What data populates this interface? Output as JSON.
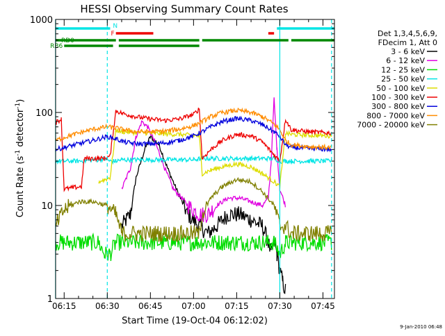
{
  "chart_data": {
    "type": "line",
    "title": "HESSI Observing Summary Count Rates",
    "xlabel": "Start Time (19-Oct-04 06:12:02)",
    "ylabel_main": "Count Rate (s",
    "ylabel_sup1": "-1",
    "ylabel_mid": " detector",
    "ylabel_sup2": "-1",
    "ylabel_end": ")",
    "footer": "9-Jan-2010 06:48",
    "x_scale": "time",
    "y_scale": "log",
    "xlim": [
      "06:12:02",
      "07:49:00"
    ],
    "ylim": [
      1,
      1000
    ],
    "x_ticks": [
      "06:15",
      "06:30",
      "06:45",
      "07:00",
      "07:15",
      "07:30",
      "07:45"
    ],
    "y_ticks": [
      {
        "value": 1,
        "label": "1"
      },
      {
        "value": 10,
        "label": "10"
      },
      {
        "value": 100,
        "label": "100"
      },
      {
        "value": 1000,
        "label": "1000"
      }
    ],
    "legend_position": "right",
    "legend_header": [
      "Det 1,3,4,5,6,9,",
      "FDecim 1, Att 0"
    ],
    "series": [
      {
        "name": "3 - 6 keV",
        "color": "#000000",
        "t": [
          "06:12",
          "06:15",
          "06:22",
          "06:27",
          "06:31",
          "06:33",
          "06:35",
          "06:38",
          "06:40",
          "06:43",
          "06:45",
          "06:48",
          "06:51",
          "06:54",
          "06:58",
          "07:02",
          "07:05",
          "07:08",
          "07:12",
          "07:16",
          "07:20",
          "07:24",
          "07:26",
          "07:27",
          "07:28",
          "07:29",
          "07:30",
          "07:31",
          "07:32",
          "07:34"
        ],
        "v": [
          null,
          null,
          null,
          null,
          null,
          null,
          6,
          8,
          20,
          40,
          55,
          45,
          25,
          15,
          8,
          6,
          5,
          6,
          8,
          8,
          7,
          6,
          4,
          3,
          4,
          3,
          2,
          1.5,
          1.2,
          null
        ]
      },
      {
        "name": "6 - 12 keV",
        "color": "#e000e0",
        "t": [
          "06:12",
          "06:14",
          "06:22",
          "06:27",
          "06:31",
          "06:33",
          "06:35",
          "06:38",
          "06:40",
          "06:42",
          "06:44",
          "06:47",
          "06:50",
          "06:53",
          "06:56",
          "06:58",
          "07:02",
          "07:05",
          "07:08",
          "07:12",
          "07:16",
          "07:20",
          "07:24",
          "07:26",
          "07:27",
          "07:28",
          "07:29",
          "07:30",
          "07:32",
          "07:34"
        ],
        "v": [
          null,
          null,
          null,
          null,
          null,
          null,
          15,
          25,
          55,
          80,
          70,
          45,
          25,
          15,
          12,
          10,
          8,
          8,
          10,
          12,
          12,
          11,
          10,
          12,
          30,
          140,
          40,
          15,
          10,
          null
        ]
      },
      {
        "name": "12 - 25 keV",
        "color": "#00dd00",
        "t": [
          "06:12",
          "06:14",
          "06:20",
          "06:27",
          "06:29",
          "06:31",
          "06:33",
          "06:35",
          "06:40",
          "06:50",
          "07:00",
          "07:03",
          "07:10",
          "07:20",
          "07:28",
          "07:30",
          "07:32",
          "07:34",
          "07:40",
          "07:48"
        ],
        "v": [
          4,
          4,
          4,
          4,
          3,
          3,
          4,
          4,
          4,
          4,
          4,
          4,
          4,
          4,
          4,
          3,
          4,
          4,
          4,
          4
        ]
      },
      {
        "name": "25 - 50 keV",
        "color": "#00e5e5",
        "t": [
          "06:12",
          "06:14",
          "06:20",
          "06:27",
          "06:29",
          "06:31",
          "06:33",
          "06:35",
          "06:40",
          "06:50",
          "07:00",
          "07:03",
          "07:10",
          "07:20",
          "07:28",
          "07:30",
          "07:32",
          "07:34",
          "07:40",
          "07:48"
        ],
        "v": [
          30,
          30,
          30,
          31,
          32,
          30,
          30,
          31,
          31,
          31,
          31,
          32,
          32,
          32,
          32,
          30,
          30,
          30,
          30,
          30
        ]
      },
      {
        "name": "50 - 100 keV",
        "color": "#dddd00",
        "t": [
          "06:12",
          "06:14",
          "06:20",
          "06:27",
          "06:29",
          "06:31",
          "06:33",
          "06:35",
          "06:45",
          "06:55",
          "07:02",
          "07:03",
          "07:06",
          "07:10",
          "07:15",
          "07:20",
          "07:24",
          "07:28",
          "07:30",
          "07:32",
          "07:34",
          "07:40",
          "07:48"
        ],
        "v": [
          null,
          null,
          null,
          18,
          19,
          20,
          65,
          62,
          60,
          58,
          56,
          22,
          24,
          26,
          28,
          26,
          22,
          18,
          16,
          60,
          58,
          57,
          56
        ]
      },
      {
        "name": "100 - 300 keV",
        "color": "#ee0000",
        "t": [
          "06:12",
          "06:14",
          "06:15",
          "06:21",
          "06:22",
          "06:27",
          "06:29",
          "06:31",
          "06:33",
          "06:35",
          "06:40",
          "06:45",
          "06:50",
          "06:55",
          "07:00",
          "07:02",
          "07:03",
          "07:06",
          "07:10",
          "07:15",
          "07:20",
          "07:24",
          "07:28",
          "07:30",
          "07:32",
          "07:34",
          "07:40",
          "07:48"
        ],
        "v": [
          78,
          85,
          15,
          16,
          32,
          32,
          32,
          34,
          105,
          98,
          90,
          85,
          82,
          85,
          95,
          110,
          32,
          40,
          50,
          58,
          56,
          48,
          35,
          30,
          85,
          65,
          62,
          60
        ]
      },
      {
        "name": "300 - 800 keV",
        "color": "#0000dd",
        "t": [
          "06:12",
          "06:15",
          "06:20",
          "06:25",
          "06:30",
          "06:33",
          "06:36",
          "06:40",
          "06:45",
          "06:50",
          "06:55",
          "07:00",
          "07:03",
          "07:06",
          "07:10",
          "07:15",
          "07:20",
          "07:24",
          "07:28",
          "07:30",
          "07:32",
          "07:34",
          "07:40",
          "07:48"
        ],
        "v": [
          40,
          42,
          46,
          50,
          55,
          52,
          48,
          46,
          46,
          47,
          50,
          56,
          62,
          70,
          80,
          86,
          82,
          74,
          62,
          55,
          45,
          42,
          41,
          40
        ]
      },
      {
        "name": "800 - 7000 keV",
        "color": "#ff8c00",
        "t": [
          "06:12",
          "06:15",
          "06:20",
          "06:25",
          "06:30",
          "06:33",
          "06:36",
          "06:40",
          "06:45",
          "06:50",
          "06:55",
          "07:00",
          "07:03",
          "07:06",
          "07:10",
          "07:15",
          "07:20",
          "07:24",
          "07:28",
          "07:30",
          "07:32",
          "07:34",
          "07:40",
          "07:48"
        ],
        "v": [
          50,
          54,
          60,
          66,
          70,
          68,
          65,
          62,
          62,
          63,
          66,
          72,
          80,
          90,
          100,
          105,
          100,
          90,
          75,
          65,
          50,
          45,
          43,
          42
        ]
      },
      {
        "name": "7000 - 20000 keV",
        "color": "#808000",
        "t": [
          "06:12",
          "06:15",
          "06:20",
          "06:25",
          "06:30",
          "06:33",
          "06:35",
          "06:40",
          "06:45",
          "06:50",
          "06:55",
          "07:00",
          "07:02",
          "07:03",
          "07:06",
          "07:10",
          "07:15",
          "07:20",
          "07:24",
          "07:28",
          "07:30",
          "07:32",
          "07:34",
          "07:40",
          "07:48"
        ],
        "v": [
          6,
          9,
          11,
          11,
          10,
          8,
          5,
          5,
          5,
          5,
          5,
          5,
          5,
          8,
          12,
          16,
          19,
          18,
          14,
          10,
          6,
          6,
          5,
          5,
          5
        ]
      }
    ],
    "state_bars": {
      "N": {
        "label": "N",
        "color": "#00e5e5",
        "intervals": [
          [
            "06:12",
            "06:31"
          ],
          [
            "07:29",
            "07:49"
          ]
        ]
      },
      "F": {
        "label": "F",
        "color": "#ee0000",
        "intervals": [
          [
            "06:33",
            "06:46"
          ],
          [
            "07:26",
            "07:28"
          ]
        ]
      },
      "RD0": {
        "label": "RD0",
        "color": "#008800",
        "intervals": [
          [
            "06:12",
            "06:33"
          ],
          [
            "06:34",
            "07:02"
          ],
          [
            "07:03",
            "07:33"
          ],
          [
            "07:34",
            "07:49"
          ]
        ]
      },
      "RB6": {
        "label": "RB6",
        "color": "#008800",
        "intervals": [
          [
            "06:15",
            "06:32"
          ],
          [
            "06:34",
            "07:02"
          ]
        ]
      }
    },
    "vertical_markers": [
      {
        "t": "06:12",
        "color": "#00e5e5",
        "style": "solid"
      },
      {
        "t": "06:30",
        "color": "#00e5e5",
        "style": "dashed"
      },
      {
        "t": "07:30",
        "color": "#00e5e5",
        "style": "solid"
      },
      {
        "t": "07:48",
        "color": "#00e5e5",
        "style": "dashed"
      }
    ]
  }
}
